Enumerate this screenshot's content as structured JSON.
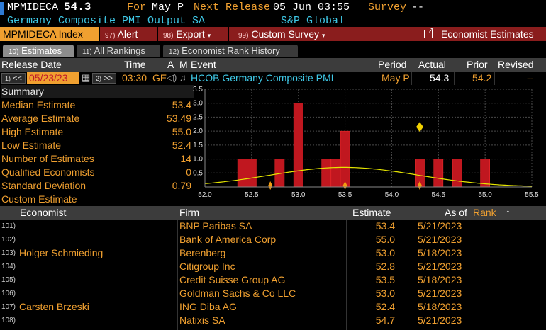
{
  "header": {
    "ticker": "MPMIDECA",
    "value": "54.3",
    "for_label": "For",
    "for_period": "May P",
    "next_release_label": "Next Release",
    "next_release": "05 Jun 03:55",
    "survey_label": "Survey",
    "survey_value": "--",
    "title": "Germany Composite PMI Output SA",
    "source": "S&P Global"
  },
  "menu": {
    "index_label": "MPMIDECA Index",
    "alert_num": "97)",
    "alert": "Alert",
    "export_num": "98)",
    "export": "Export",
    "custom_num": "99)",
    "custom": "Custom Survey",
    "economist": "Economist Estimates"
  },
  "tabs": [
    {
      "num": "10)",
      "label": "Estimates"
    },
    {
      "num": "11)",
      "label": "All Rankings"
    },
    {
      "num": "12)",
      "label": "Economist Rank History"
    }
  ],
  "columns": {
    "release_date": "Release Date",
    "time": "Time",
    "a": "A",
    "m": "M",
    "event": "Event",
    "period": "Period",
    "actual": "Actual",
    "prior": "Prior",
    "revised": "Revised"
  },
  "datarow": {
    "prev_num": "1)",
    "prev": "<<",
    "date": "05/23/23",
    "next_num": "2)",
    "next": ">>",
    "time": "03:30",
    "tz": "GE",
    "event": "HCOB Germany Composite PMI",
    "period": "May P",
    "actual": "54.3",
    "prior": "54.2",
    "revised": "--"
  },
  "summary": {
    "title": "Summary",
    "rows": [
      {
        "label": "Median Estimate",
        "value": "53.4"
      },
      {
        "label": "Average Estimate",
        "value": "53.49"
      },
      {
        "label": "High Estimate",
        "value": "55.0"
      },
      {
        "label": "Low Estimate",
        "value": "52.4"
      },
      {
        "label": "Number of Estimates",
        "value": "14"
      },
      {
        "label": "Qualified Economists",
        "value": "0"
      },
      {
        "label": "Standard Deviation",
        "value": "0.79"
      },
      {
        "label": "Custom Estimate",
        "value": ""
      }
    ]
  },
  "chart_data": {
    "type": "bar",
    "x_ticks": [
      "52.0",
      "52.5",
      "53.0",
      "53.5",
      "54.0",
      "54.5",
      "55.0",
      "55.5"
    ],
    "y_ticks": [
      "0.5",
      "1.0",
      "1.5",
      "2.0",
      "2.5",
      "3.0",
      "3.5"
    ],
    "xlim": [
      52.0,
      55.5
    ],
    "ylim": [
      0,
      3.5
    ],
    "bars": [
      {
        "x": 52.4,
        "count": 1
      },
      {
        "x": 52.5,
        "count": 1
      },
      {
        "x": 52.8,
        "count": 1
      },
      {
        "x": 53.0,
        "count": 3
      },
      {
        "x": 53.3,
        "count": 1
      },
      {
        "x": 53.4,
        "count": 1
      },
      {
        "x": 53.5,
        "count": 2
      },
      {
        "x": 54.3,
        "count": 1
      },
      {
        "x": 54.5,
        "count": 1
      },
      {
        "x": 54.7,
        "count": 1
      },
      {
        "x": 55.0,
        "count": 1
      }
    ],
    "bar_color": "#c0171f",
    "curve_color": "#e6e600",
    "actual_marker": 54.3,
    "markers": [
      52.7,
      53.5,
      54.3
    ]
  },
  "table": {
    "headers": {
      "economist": "Economist",
      "firm": "Firm",
      "estimate": "Estimate",
      "as_of": "As of",
      "rank": "Rank"
    },
    "rows": [
      {
        "num": "101)",
        "economist": "",
        "firm": "BNP Paribas SA",
        "estimate": "53.4",
        "as_of": "5/21/2023"
      },
      {
        "num": "102)",
        "economist": "",
        "firm": "Bank of America Corp",
        "estimate": "55.0",
        "as_of": "5/21/2023"
      },
      {
        "num": "103)",
        "economist": "Holger Schmieding",
        "firm": "Berenberg",
        "estimate": "53.0",
        "as_of": "5/18/2023"
      },
      {
        "num": "104)",
        "economist": "",
        "firm": "Citigroup Inc",
        "estimate": "52.8",
        "as_of": "5/21/2023"
      },
      {
        "num": "105)",
        "economist": "",
        "firm": "Credit Suisse Group AG",
        "estimate": "53.5",
        "as_of": "5/18/2023"
      },
      {
        "num": "106)",
        "economist": "",
        "firm": "Goldman Sachs & Co LLC",
        "estimate": "53.0",
        "as_of": "5/21/2023"
      },
      {
        "num": "107)",
        "economist": "Carsten Brzeski",
        "firm": "ING Diba AG",
        "estimate": "52.4",
        "as_of": "5/18/2023"
      },
      {
        "num": "108)",
        "economist": "",
        "firm": "Natixis SA",
        "estimate": "54.7",
        "as_of": "5/21/2023"
      }
    ]
  }
}
